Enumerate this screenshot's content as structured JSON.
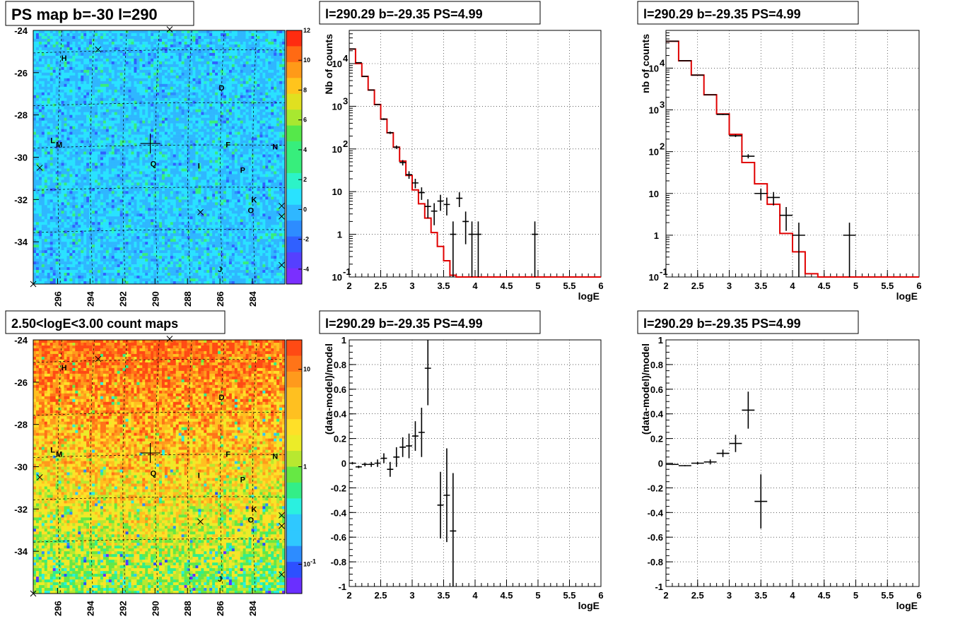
{
  "colors": {
    "data": "#000000",
    "model": "#e00000",
    "grid": "#000000"
  },
  "chart_data": [
    {
      "type": "heatmap",
      "title": "PS map b=-30 l=290",
      "x_ticks": [
        "296",
        "294",
        "292",
        "290",
        "288",
        "286",
        "284"
      ],
      "y_ticks": [
        "-24",
        "-26",
        "-28",
        "-30",
        "-32",
        "-34"
      ],
      "xlim": [
        297.5,
        282
      ],
      "ylim": [
        -36,
        -24
      ],
      "colorbar": {
        "scale": "linear",
        "range": [
          -5,
          12
        ],
        "ticks": [
          "12",
          "10",
          "8",
          "6",
          "4",
          "2",
          "0",
          "-2",
          "-4"
        ]
      },
      "sources": [
        {
          "label": "H",
          "l": 295.6,
          "b": -25.3
        },
        {
          "label": "D",
          "l": 285.9,
          "b": -26.7
        },
        {
          "label": "L",
          "l": 296.3,
          "b": -29.2
        },
        {
          "label": "M",
          "l": 295.9,
          "b": -29.4
        },
        {
          "label": "F",
          "l": 285.5,
          "b": -29.4
        },
        {
          "label": "N",
          "l": 282.6,
          "b": -29.5
        },
        {
          "label": "Q",
          "l": 290.1,
          "b": -30.3
        },
        {
          "label": "I",
          "l": 287.3,
          "b": -30.4
        },
        {
          "label": "P",
          "l": 284.6,
          "b": -30.6
        },
        {
          "label": "K",
          "l": 283.9,
          "b": -32.0
        },
        {
          "label": "O",
          "l": 284.1,
          "b": -32.5
        },
        {
          "label": "J",
          "l": 286.0,
          "b": -35.3
        }
      ],
      "crosses": [
        {
          "l": 289.1,
          "b": -23.95
        },
        {
          "l": 293.5,
          "b": -24.9
        },
        {
          "l": 297.1,
          "b": -30.5
        },
        {
          "l": 287.2,
          "b": -32.6
        },
        {
          "l": 282.2,
          "b": -32.3
        },
        {
          "l": 282.2,
          "b": -32.8
        },
        {
          "l": 282.2,
          "b": -35.1
        },
        {
          "l": 297.5,
          "b": -36.0
        }
      ],
      "center": {
        "l": 290.29,
        "b": -29.35
      }
    },
    {
      "type": "line",
      "title": "l=290.29 b=-29.35 PS=4.99",
      "xlabel": "logE",
      "ylabel": "Nb of counts",
      "xlim": [
        2,
        6
      ],
      "ylim": [
        0.1,
        60000
      ],
      "yscale": "log",
      "x_ticks": [
        "2",
        "2.5",
        "3",
        "3.5",
        "4",
        "4.5",
        "5",
        "5.5",
        "6"
      ],
      "y_ticks": [
        {
          "v": 0.1,
          "t": "10"
        },
        {
          "v": 1,
          "t": "1"
        },
        {
          "v": 10,
          "t": "10"
        },
        {
          "v": 100,
          "t": "10"
        },
        {
          "v": 1000,
          "t": "10"
        },
        {
          "v": 10000,
          "t": "10"
        }
      ],
      "y_tick_exponents": [
        "-1",
        "",
        "",
        "2",
        "3",
        "4"
      ],
      "bin_width": 0.1,
      "model": {
        "name": "",
        "edges_start": 2,
        "values": [
          22000,
          10000,
          5000,
          2400,
          1100,
          500,
          240,
          110,
          52,
          24,
          11,
          5.2,
          2.4,
          1.1,
          0.52,
          0.24,
          0.11,
          0.05,
          0.02,
          0.01,
          0.01,
          0.01,
          0.01,
          0.01,
          0.01,
          0.01,
          0.01,
          0.01,
          0.01,
          0.01,
          0.01,
          0.01,
          0.01,
          0.01,
          0.01,
          0.01,
          0.01,
          0.01,
          0.01,
          0.01
        ]
      },
      "data": [
        {
          "x": 2.05,
          "y": 22000
        },
        {
          "x": 2.15,
          "y": 10500
        },
        {
          "x": 2.25,
          "y": 5000
        },
        {
          "x": 2.35,
          "y": 2400
        },
        {
          "x": 2.45,
          "y": 1100
        },
        {
          "x": 2.55,
          "y": 500
        },
        {
          "x": 2.65,
          "y": 240
        },
        {
          "x": 2.75,
          "y": 110
        },
        {
          "x": 2.85,
          "y": 48
        },
        {
          "x": 2.95,
          "y": 25
        },
        {
          "x": 3.05,
          "y": 16
        },
        {
          "x": 3.15,
          "y": 9.5
        },
        {
          "x": 3.25,
          "y": 4.5
        },
        {
          "x": 3.35,
          "y": 3.5
        },
        {
          "x": 3.45,
          "y": 6
        },
        {
          "x": 3.55,
          "y": 5
        },
        {
          "x": 3.65,
          "y": 1
        },
        {
          "x": 3.75,
          "y": 7
        },
        {
          "x": 3.85,
          "y": 2
        },
        {
          "x": 3.95,
          "y": 1
        },
        {
          "x": 4.05,
          "y": 1
        },
        {
          "x": 4.95,
          "y": 1
        }
      ]
    },
    {
      "type": "line",
      "title": "l=290.29 b=-29.35 PS=4.99",
      "xlabel": "logE",
      "ylabel": "nb of counts",
      "xlim": [
        2,
        6
      ],
      "ylim": [
        0.1,
        80000
      ],
      "yscale": "log",
      "x_ticks": [
        "2",
        "2.5",
        "3",
        "3.5",
        "4",
        "4.5",
        "5",
        "5.5",
        "6"
      ],
      "y_ticks": [
        {
          "v": 0.1,
          "t": "10"
        },
        {
          "v": 1,
          "t": "1"
        },
        {
          "v": 10,
          "t": "10"
        },
        {
          "v": 100,
          "t": "10"
        },
        {
          "v": 1000,
          "t": "10"
        },
        {
          "v": 10000,
          "t": "10"
        }
      ],
      "y_tick_exponents": [
        "-1",
        "",
        "",
        "2",
        "3",
        "4"
      ],
      "bin_width": 0.2,
      "model": {
        "name": "",
        "edges_start": 2,
        "values": [
          44000,
          15000,
          6800,
          2300,
          800,
          260,
          55,
          17,
          5.5,
          1.1,
          0.4,
          0.12,
          0.02,
          0.02,
          0.02,
          0.02,
          0.02,
          0.02,
          0.02,
          0.02
        ]
      },
      "data": [
        {
          "x": 2.1,
          "y": 44000
        },
        {
          "x": 2.3,
          "y": 15000
        },
        {
          "x": 2.5,
          "y": 6800
        },
        {
          "x": 2.7,
          "y": 2300
        },
        {
          "x": 2.9,
          "y": 780
        },
        {
          "x": 3.1,
          "y": 240
        },
        {
          "x": 3.3,
          "y": 78
        },
        {
          "x": 3.5,
          "y": 10
        },
        {
          "x": 3.7,
          "y": 8
        },
        {
          "x": 3.9,
          "y": 3
        },
        {
          "x": 4.1,
          "y": 1
        },
        {
          "x": 4.9,
          "y": 1
        }
      ]
    },
    {
      "type": "heatmap",
      "title": "2.50<logE<3.00 count maps",
      "x_ticks": [
        "296",
        "294",
        "292",
        "290",
        "288",
        "286",
        "284"
      ],
      "y_ticks": [
        "-24",
        "-26",
        "-28",
        "-30",
        "-32",
        "-34"
      ],
      "xlim": [
        297.5,
        282
      ],
      "ylim": [
        -36,
        -24
      ],
      "colorbar": {
        "scale": "log",
        "range": [
          0.05,
          20
        ],
        "ticks": [
          "10",
          "1",
          "10"
        ],
        "tick_exponents": [
          "",
          "",
          "-1"
        ]
      },
      "sources": [
        {
          "label": "H",
          "l": 295.6,
          "b": -25.3
        },
        {
          "label": "D",
          "l": 285.9,
          "b": -26.7
        },
        {
          "label": "L",
          "l": 296.3,
          "b": -29.2
        },
        {
          "label": "M",
          "l": 295.9,
          "b": -29.4
        },
        {
          "label": "F",
          "l": 285.5,
          "b": -29.4
        },
        {
          "label": "N",
          "l": 282.6,
          "b": -29.5
        },
        {
          "label": "Q",
          "l": 290.1,
          "b": -30.3
        },
        {
          "label": "I",
          "l": 287.3,
          "b": -30.4
        },
        {
          "label": "P",
          "l": 284.6,
          "b": -30.6
        },
        {
          "label": "K",
          "l": 283.9,
          "b": -32.0
        },
        {
          "label": "O",
          "l": 284.1,
          "b": -32.5
        },
        {
          "label": "J",
          "l": 286.0,
          "b": -35.3
        }
      ],
      "crosses": [
        {
          "l": 289.1,
          "b": -23.95
        },
        {
          "l": 293.5,
          "b": -24.9
        },
        {
          "l": 297.1,
          "b": -30.5
        },
        {
          "l": 287.2,
          "b": -32.6
        },
        {
          "l": 282.2,
          "b": -32.3
        },
        {
          "l": 282.2,
          "b": -32.8
        },
        {
          "l": 282.2,
          "b": -35.1
        },
        {
          "l": 297.5,
          "b": -36.0
        }
      ],
      "center": {
        "l": 290.29,
        "b": -29.35
      }
    },
    {
      "type": "scatter",
      "title": "l=290.29 b=-29.35 PS=4.99",
      "xlabel": "logE",
      "ylabel": "(data-model)/model",
      "xlim": [
        2,
        6
      ],
      "ylim": [
        -1,
        1
      ],
      "x_ticks": [
        "2",
        "2.5",
        "3",
        "3.5",
        "4",
        "4.5",
        "5",
        "5.5",
        "6"
      ],
      "y_ticks": [
        "-1",
        "-0.8",
        "-0.6",
        "-0.4",
        "-0.2",
        "0",
        "0.2",
        "0.4",
        "0.6",
        "0.8",
        "1"
      ],
      "bin_width": 0.1,
      "data": [
        {
          "x": 2.05,
          "y": 0,
          "e": 0.01
        },
        {
          "x": 2.15,
          "y": -0.03,
          "e": 0.01
        },
        {
          "x": 2.25,
          "y": -0.01,
          "e": 0.015
        },
        {
          "x": 2.35,
          "y": -0.01,
          "e": 0.02
        },
        {
          "x": 2.45,
          "y": 0,
          "e": 0.03
        },
        {
          "x": 2.55,
          "y": 0.04,
          "e": 0.04
        },
        {
          "x": 2.65,
          "y": -0.05,
          "e": 0.06
        },
        {
          "x": 2.75,
          "y": 0.05,
          "e": 0.08
        },
        {
          "x": 2.85,
          "y": 0.13,
          "e": 0.08
        },
        {
          "x": 2.95,
          "y": 0.14,
          "e": 0.1
        },
        {
          "x": 3.05,
          "y": 0.22,
          "e": 0.12
        },
        {
          "x": 3.15,
          "y": 0.25,
          "e": 0.2
        },
        {
          "x": 3.25,
          "y": 0.77,
          "e": 0.3
        },
        {
          "x": 3.45,
          "y": -0.34,
          "e": 0.27
        },
        {
          "x": 3.55,
          "y": -0.26,
          "e": 0.38
        },
        {
          "x": 3.65,
          "y": -0.55,
          "e": 0.47
        }
      ]
    },
    {
      "type": "scatter",
      "title": "l=290.29 b=-29.35 PS=4.99",
      "xlabel": "logE",
      "ylabel": "(data-model)/model",
      "xlim": [
        2,
        6
      ],
      "ylim": [
        -1,
        1
      ],
      "x_ticks": [
        "2",
        "2.5",
        "3",
        "3.5",
        "4",
        "4.5",
        "5",
        "5.5",
        "6"
      ],
      "y_ticks": [
        "-1",
        "-0.8",
        "-0.6",
        "-0.4",
        "-0.2",
        "0",
        "0.2",
        "0.4",
        "0.6",
        "0.8",
        "1"
      ],
      "bin_width": 0.2,
      "data": [
        {
          "x": 2.1,
          "y": -0.01,
          "e": 0.005
        },
        {
          "x": 2.3,
          "y": -0.02,
          "e": 0.005
        },
        {
          "x": 2.5,
          "y": 0,
          "e": 0.01
        },
        {
          "x": 2.7,
          "y": 0.01,
          "e": 0.02
        },
        {
          "x": 2.9,
          "y": 0.08,
          "e": 0.03
        },
        {
          "x": 3.1,
          "y": 0.16,
          "e": 0.07
        },
        {
          "x": 3.3,
          "y": 0.43,
          "e": 0.15
        },
        {
          "x": 3.5,
          "y": -0.31,
          "e": 0.22
        }
      ]
    }
  ]
}
